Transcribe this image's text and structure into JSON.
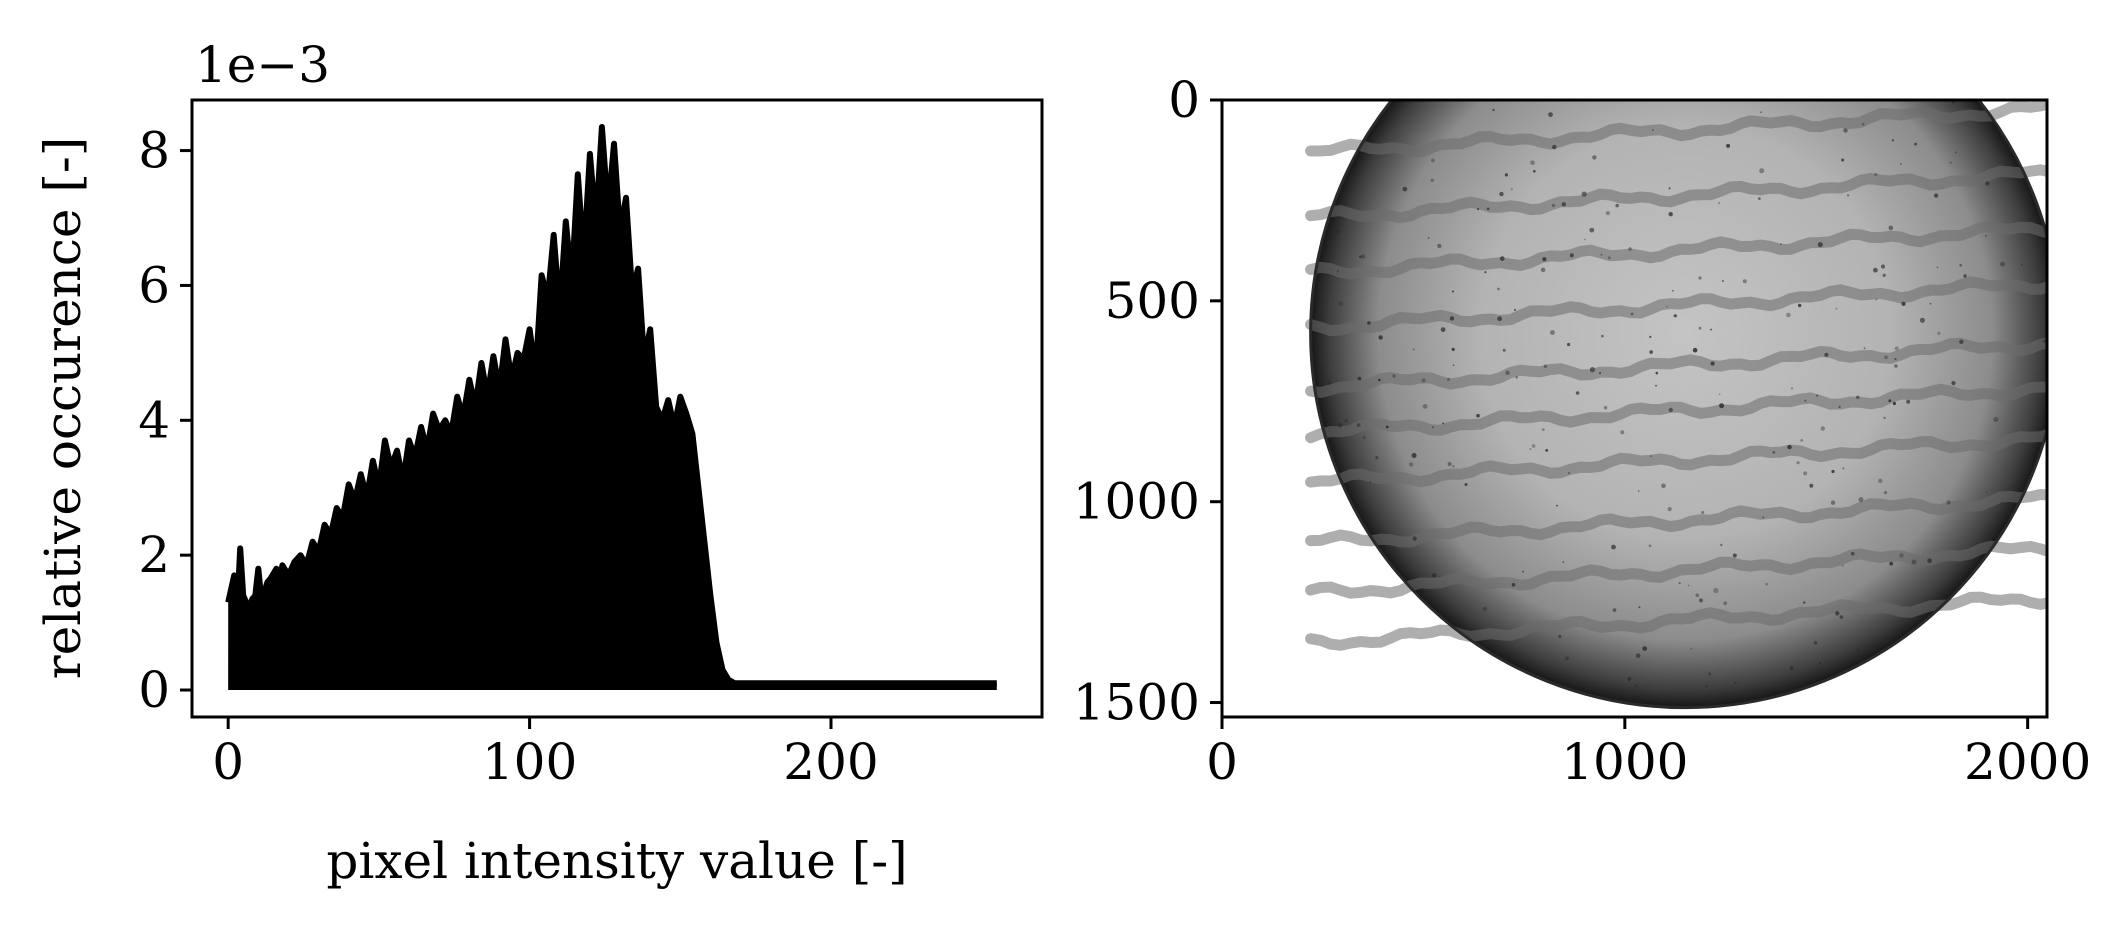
{
  "chart_data": [
    {
      "type": "area",
      "title": "",
      "xlabel": "pixel intensity value [-]",
      "ylabel": "relative occurence [-]",
      "offset_label": "1e−3",
      "xlim": [
        -12,
        270
      ],
      "ylim": [
        -0.4,
        8.75
      ],
      "xticks": [
        0,
        100,
        200
      ],
      "yticks": [
        0,
        2,
        4,
        6,
        8
      ],
      "xtick_labels": [
        "0",
        "100",
        "200"
      ],
      "ytick_labels": [
        "0",
        "2",
        "4",
        "6",
        "8"
      ],
      "grid": false,
      "fill_color": "#000000",
      "series": [
        {
          "x": [
            0,
            2,
            3,
            4,
            5,
            6,
            7,
            8,
            9,
            10,
            11,
            12,
            13,
            14,
            16,
            17,
            18,
            20,
            22,
            24,
            26,
            28,
            30,
            32,
            34,
            36,
            38,
            40,
            42,
            44,
            46,
            48,
            50,
            52,
            54,
            56,
            58,
            60,
            62,
            64,
            66,
            68,
            70,
            72,
            74,
            76,
            78,
            80,
            82,
            84,
            86,
            88,
            90,
            92,
            94,
            96,
            98,
            100,
            102,
            104,
            106,
            108,
            110,
            112,
            114,
            116,
            118,
            120,
            122,
            124,
            126,
            128,
            130,
            132,
            134,
            136,
            138,
            140,
            142,
            144,
            146,
            148,
            150,
            152,
            154,
            156,
            158,
            160,
            162,
            164,
            166,
            168,
            170,
            172,
            174,
            176,
            178,
            180,
            181,
            182,
            183,
            184,
            185,
            186,
            187,
            188,
            189,
            190,
            191,
            192,
            193,
            194,
            195,
            196,
            197,
            198,
            200,
            205,
            210,
            220,
            230,
            240,
            250,
            255
          ],
          "y": [
            1.3,
            1.7,
            1.2,
            2.1,
            1.4,
            1.3,
            1.2,
            1.35,
            1.4,
            1.8,
            1.35,
            1.45,
            1.6,
            1.65,
            1.8,
            1.55,
            1.85,
            1.7,
            1.9,
            2.0,
            1.85,
            2.2,
            2.05,
            2.45,
            2.3,
            2.7,
            2.55,
            3.05,
            2.8,
            3.2,
            2.85,
            3.4,
            3.0,
            3.7,
            3.3,
            3.55,
            3.1,
            3.7,
            3.45,
            3.9,
            3.55,
            4.1,
            3.85,
            4.0,
            3.8,
            4.35,
            4.05,
            4.6,
            4.2,
            4.85,
            4.35,
            4.95,
            4.45,
            5.2,
            4.6,
            5.0,
            4.9,
            5.35,
            4.7,
            6.15,
            5.8,
            6.75,
            5.6,
            6.95,
            6.05,
            7.65,
            6.4,
            7.95,
            6.9,
            8.35,
            7.1,
            8.1,
            6.8,
            7.3,
            5.9,
            6.25,
            4.9,
            5.35,
            4.2,
            4.0,
            4.3,
            3.9,
            4.35,
            4.1,
            3.8,
            3.0,
            2.2,
            1.4,
            0.7,
            0.3,
            0.15,
            0.1,
            0.1,
            0.1,
            0.1,
            0.1,
            0.1,
            0.1,
            0.1,
            0.1,
            0.1,
            0.1,
            0.1,
            0.1,
            0.1,
            0.1,
            0.1,
            0.1,
            0.1,
            0.1,
            0.1,
            0.1,
            0.1,
            0.1,
            0.1,
            0.1,
            0.1,
            0.1,
            0.1,
            0.1,
            0.1,
            0.1,
            0.1,
            0.1
          ]
        }
      ]
    },
    {
      "type": "heatmap",
      "title": "",
      "xlabel": "",
      "ylabel": "",
      "xlim": [
        0,
        2048
      ],
      "ylim": [
        1536,
        0
      ],
      "xticks": [
        0,
        1000,
        2000
      ],
      "yticks": [
        0,
        500,
        1000,
        1500
      ],
      "xtick_labels": [
        "0",
        "1000",
        "2000"
      ],
      "ytick_labels": [
        "0",
        "500",
        "1000",
        "1500"
      ],
      "image": {
        "description": "grayscale microscope image in a circular aperture",
        "colormap": "gray",
        "circle_center": [
          1150,
          580
        ],
        "circle_radius": 930
      }
    }
  ]
}
